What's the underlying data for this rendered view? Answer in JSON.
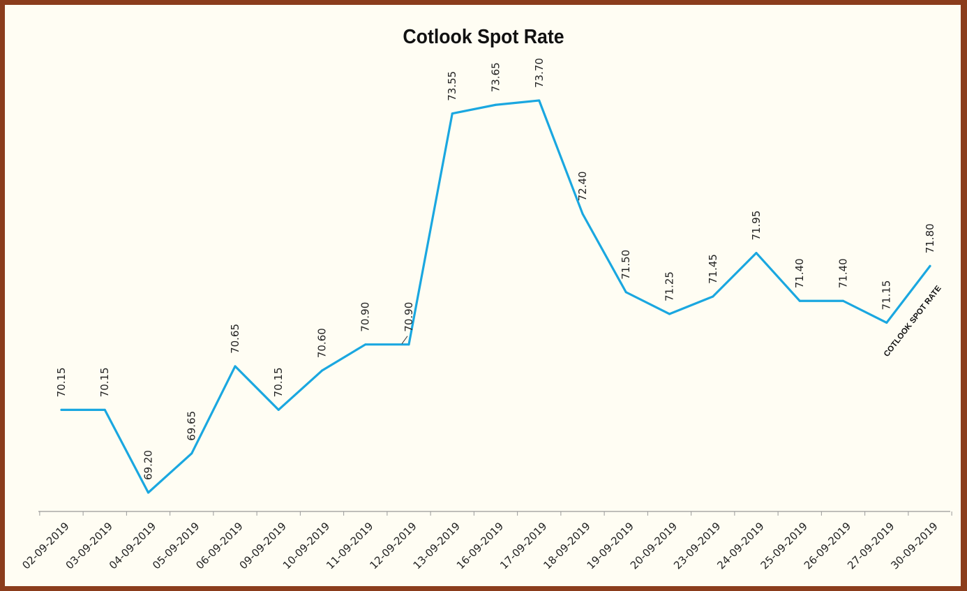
{
  "chart_data": {
    "type": "line",
    "title": "Cotlook Spot Rate",
    "xlabel": "",
    "ylabel": "",
    "categories": [
      "02-09-2019",
      "03-09-2019",
      "04-09-2019",
      "05-09-2019",
      "06-09-2019",
      "09-09-2019",
      "10-09-2019",
      "11-09-2019",
      "12-09-2019",
      "13-09-2019",
      "16-09-2019",
      "17-09-2019",
      "18-09-2019",
      "19-09-2019",
      "20-09-2019",
      "23-09-2019",
      "24-09-2019",
      "25-09-2019",
      "26-09-2019",
      "27-09-2019",
      "30-09-2019"
    ],
    "series": [
      {
        "name": "COTLOOK SPOT RATE",
        "values": [
          70.15,
          70.15,
          69.2,
          69.65,
          70.65,
          70.15,
          70.6,
          70.9,
          70.9,
          73.55,
          73.65,
          73.7,
          72.4,
          71.5,
          71.25,
          71.45,
          71.95,
          71.4,
          71.4,
          71.15,
          71.8
        ],
        "value_labels": [
          "70.15",
          "70.15",
          "69.20",
          "69.65",
          "70.65",
          "70.15",
          "70.60",
          "70.90",
          "70.90",
          "73.55",
          "73.65",
          "73.70",
          "72.40",
          "71.50",
          "71.25",
          "71.45",
          "71.95",
          "71.40",
          "71.40",
          "71.15",
          "71.80"
        ],
        "color": "#1aa7e0"
      }
    ],
    "grid": false,
    "legend": "none",
    "y_axis_visible": false
  },
  "colors": {
    "frame": "#8b3d1c",
    "background": "#fffdf3",
    "line": "#1aa7e0",
    "axis": "#999999"
  }
}
